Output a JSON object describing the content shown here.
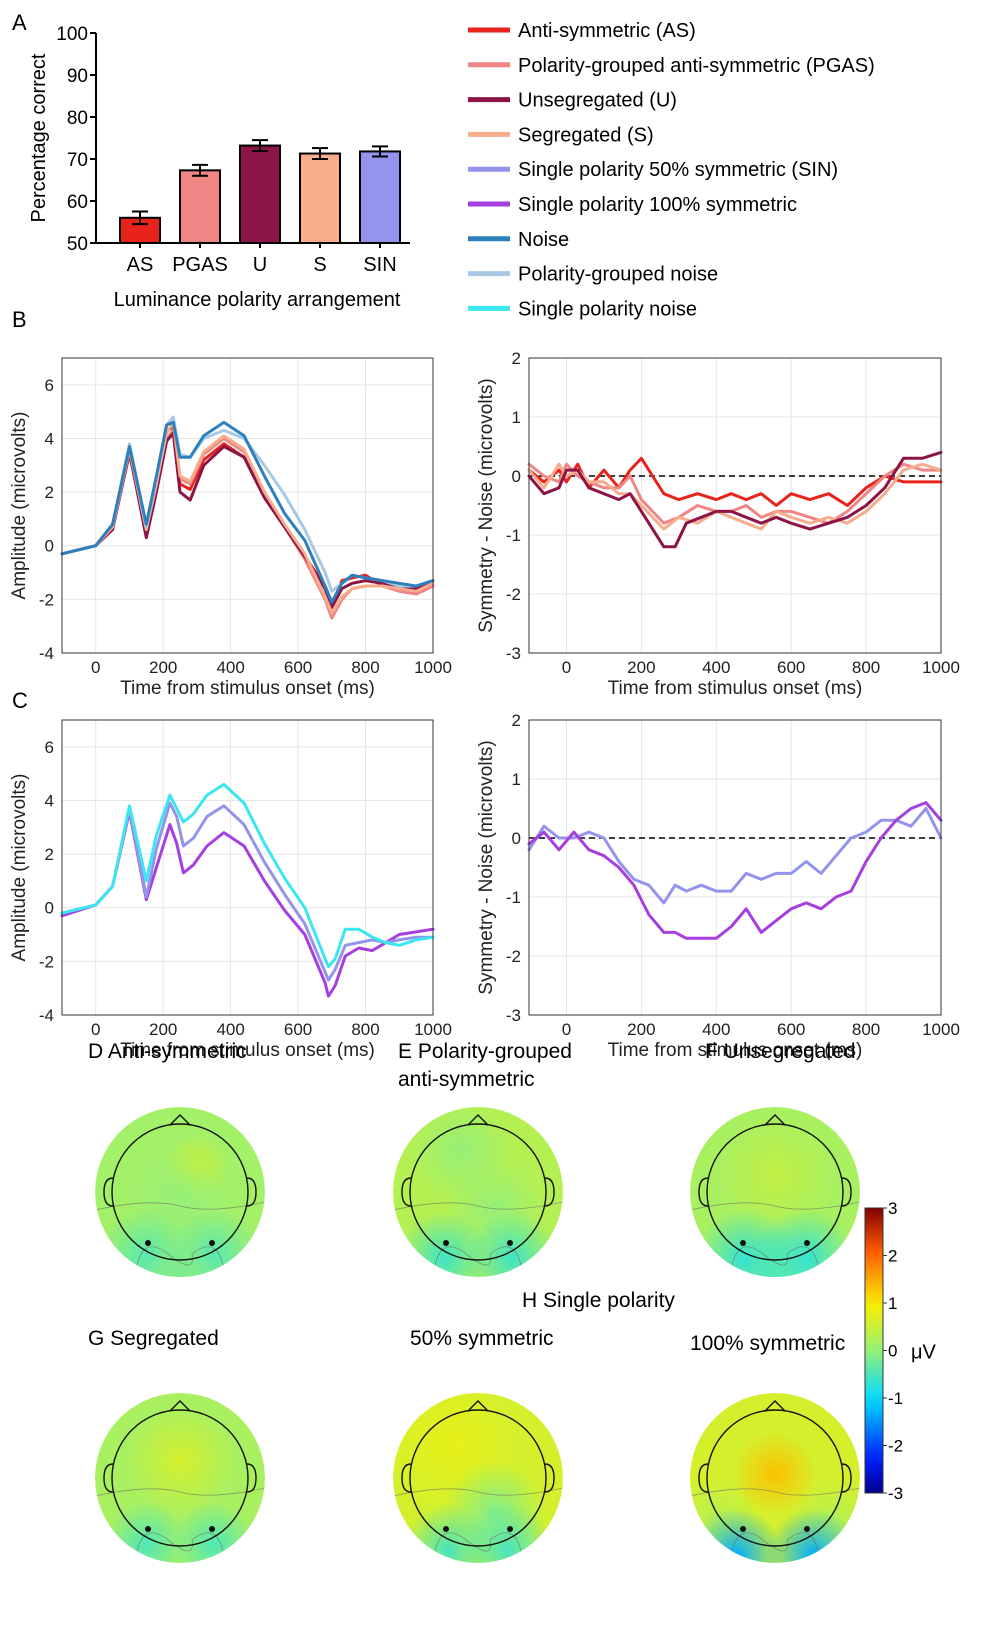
{
  "panel_labels": {
    "A": "A",
    "B": "B",
    "C": "C"
  },
  "colors": {
    "AS": "#e8231b",
    "PGAS": "#f08585",
    "U": "#8c1446",
    "S": "#f7ad8c",
    "SIN": "#9494ec",
    "SP100": "#a63fe0",
    "Noise": "#2e80bd",
    "PGNoise": "#a8c8e6",
    "SPNoise": "#3ce6f0"
  },
  "legend": [
    {
      "key": "AS",
      "label": "Anti-symmetric (AS)"
    },
    {
      "key": "PGAS",
      "label": "Polarity-grouped anti-symmetric (PGAS)"
    },
    {
      "key": "U",
      "label": "Unsegregated (U)"
    },
    {
      "key": "S",
      "label": "Segregated (S)"
    },
    {
      "key": "SIN",
      "label": "Single polarity 50% symmetric (SIN)"
    },
    {
      "key": "SP100",
      "label": "Single polarity 100% symmetric"
    },
    {
      "key": "Noise",
      "label": "Noise"
    },
    {
      "key": "PGNoise",
      "label": "Polarity-grouped noise"
    },
    {
      "key": "SPNoise",
      "label": "Single polarity noise"
    }
  ],
  "chart_data": [
    {
      "id": "A",
      "type": "bar",
      "categories": [
        "AS",
        "PGAS",
        "U",
        "S",
        "SIN"
      ],
      "values": [
        56,
        67.3,
        73.2,
        71.3,
        71.8
      ],
      "errors": [
        1.5,
        1.3,
        1.3,
        1.3,
        1.2
      ],
      "colors": [
        "AS",
        "PGAS",
        "U",
        "S",
        "SIN"
      ],
      "xlabel": "Luminance polarity arrangement",
      "ylabel": "Percentage correct",
      "ylim": [
        50,
        100
      ],
      "yticks": [
        "50",
        "60",
        "70",
        "80",
        "90",
        "100"
      ]
    },
    {
      "id": "B-left",
      "type": "line",
      "xlabel": "Time from stimulus onset (ms)",
      "ylabel": "Amplitude (microvolts)",
      "xlim": [
        -100,
        1000
      ],
      "ylim": [
        -4,
        7
      ],
      "xticks": [
        "0",
        "200",
        "400",
        "600",
        "800",
        "1000"
      ],
      "yticks": [
        "-4",
        "-2",
        "0",
        "2",
        "4",
        "6"
      ],
      "grid": true,
      "series": [
        {
          "color": "AS",
          "x": [
            -100,
            0,
            50,
            100,
            150,
            180,
            210,
            230,
            250,
            280,
            320,
            380,
            440,
            500,
            560,
            620,
            680,
            700,
            730,
            760,
            800,
            850,
            900,
            950,
            1000
          ],
          "y": [
            -0.3,
            0,
            0.8,
            3.6,
            0.6,
            2.3,
            4.3,
            4.4,
            2.3,
            2.1,
            3.2,
            3.8,
            3.3,
            1.8,
            0.7,
            -0.4,
            -1.5,
            -2.2,
            -1.3,
            -1.2,
            -1.1,
            -1.5,
            -1.6,
            -1.8,
            -1.5
          ]
        },
        {
          "color": "PGAS",
          "x": [
            -100,
            0,
            50,
            100,
            150,
            180,
            210,
            230,
            250,
            280,
            320,
            380,
            440,
            500,
            560,
            620,
            680,
            700,
            730,
            760,
            800,
            850,
            900,
            950,
            1000
          ],
          "y": [
            -0.3,
            0,
            0.7,
            3.4,
            0.5,
            2.1,
            4.0,
            4.3,
            2.5,
            2.3,
            3.4,
            4.0,
            3.5,
            1.9,
            0.7,
            -0.5,
            -2.0,
            -2.7,
            -2.0,
            -1.6,
            -1.5,
            -1.5,
            -1.7,
            -1.8,
            -1.5
          ]
        },
        {
          "color": "U",
          "x": [
            -100,
            0,
            50,
            100,
            150,
            180,
            210,
            230,
            250,
            280,
            320,
            380,
            440,
            500,
            560,
            620,
            680,
            700,
            730,
            760,
            800,
            850,
            900,
            950,
            1000
          ],
          "y": [
            -0.3,
            0,
            0.6,
            3.5,
            0.3,
            2.0,
            3.9,
            4.2,
            2.0,
            1.7,
            3.0,
            3.7,
            3.3,
            1.8,
            0.7,
            -0.4,
            -1.6,
            -2.3,
            -1.6,
            -1.4,
            -1.3,
            -1.4,
            -1.5,
            -1.6,
            -1.4
          ]
        },
        {
          "color": "S",
          "x": [
            -100,
            0,
            50,
            100,
            150,
            180,
            210,
            230,
            250,
            280,
            320,
            380,
            440,
            500,
            560,
            620,
            680,
            700,
            730,
            760,
            800,
            850,
            900,
            950,
            1000
          ],
          "y": [
            -0.3,
            0,
            0.7,
            3.6,
            0.6,
            2.3,
            4.2,
            4.6,
            2.6,
            2.4,
            3.5,
            4.1,
            3.6,
            2.0,
            0.8,
            -0.3,
            -1.9,
            -2.5,
            -1.9,
            -1.6,
            -1.5,
            -1.5,
            -1.6,
            -1.7,
            -1.4
          ]
        },
        {
          "color": "PGNoise",
          "x": [
            -100,
            0,
            50,
            100,
            150,
            180,
            210,
            230,
            250,
            280,
            320,
            380,
            440,
            500,
            560,
            620,
            680,
            700,
            730,
            760,
            800,
            850,
            900,
            950,
            1000
          ],
          "y": [
            -0.3,
            0,
            0.8,
            3.8,
            0.7,
            2.5,
            4.5,
            4.8,
            3.4,
            3.3,
            4.0,
            4.3,
            4.0,
            3.0,
            1.9,
            0.6,
            -1.0,
            -1.7,
            -1.4,
            -1.1,
            -1.2,
            -1.3,
            -1.5,
            -1.5,
            -1.3
          ]
        },
        {
          "color": "Noise",
          "x": [
            -100,
            0,
            50,
            100,
            150,
            180,
            210,
            230,
            250,
            280,
            320,
            380,
            440,
            500,
            560,
            620,
            680,
            700,
            730,
            760,
            800,
            850,
            900,
            950,
            1000
          ],
          "y": [
            -0.3,
            0,
            0.8,
            3.7,
            0.8,
            2.6,
            4.5,
            4.6,
            3.3,
            3.3,
            4.1,
            4.6,
            4.1,
            2.6,
            1.2,
            0.2,
            -1.5,
            -2.1,
            -1.4,
            -1.1,
            -1.2,
            -1.3,
            -1.4,
            -1.5,
            -1.3
          ]
        }
      ]
    },
    {
      "id": "B-right",
      "type": "line",
      "xlabel": "Time from stimulus onset (ms)",
      "ylabel": "Symmetry - Noise (microvolts)",
      "xlim": [
        -100,
        1000
      ],
      "ylim": [
        -3,
        2
      ],
      "xticks": [
        "0",
        "200",
        "400",
        "600",
        "800",
        "1000"
      ],
      "yticks": [
        "-3",
        "-2",
        "-1",
        "0",
        "1",
        "2"
      ],
      "grid": true,
      "zero_line": "dashed",
      "series": [
        {
          "color": "AS",
          "x": [
            -100,
            -60,
            -20,
            0,
            30,
            60,
            100,
            140,
            170,
            200,
            230,
            260,
            300,
            350,
            400,
            440,
            480,
            520,
            560,
            600,
            650,
            700,
            750,
            800,
            850,
            900,
            950,
            1000
          ],
          "y": [
            0.1,
            -0.1,
            0.1,
            -0.1,
            0.2,
            -0.2,
            0.1,
            -0.2,
            0.1,
            0.3,
            0.0,
            -0.3,
            -0.4,
            -0.3,
            -0.4,
            -0.3,
            -0.4,
            -0.3,
            -0.5,
            -0.3,
            -0.4,
            -0.3,
            -0.5,
            -0.2,
            0.0,
            -0.1,
            -0.1,
            -0.1
          ]
        },
        {
          "color": "PGAS",
          "x": [
            -100,
            -60,
            -20,
            0,
            30,
            60,
            100,
            140,
            170,
            200,
            230,
            260,
            300,
            350,
            400,
            440,
            480,
            520,
            560,
            600,
            650,
            700,
            750,
            800,
            850,
            900,
            950,
            1000
          ],
          "y": [
            0.2,
            0.0,
            -0.1,
            0.2,
            0.0,
            -0.1,
            -0.2,
            -0.2,
            0.0,
            -0.4,
            -0.6,
            -0.8,
            -0.7,
            -0.5,
            -0.6,
            -0.6,
            -0.5,
            -0.7,
            -0.6,
            -0.6,
            -0.7,
            -0.8,
            -0.6,
            -0.3,
            0.0,
            0.2,
            0.1,
            0.1
          ]
        },
        {
          "color": "S",
          "x": [
            -100,
            -60,
            -20,
            0,
            30,
            60,
            100,
            140,
            170,
            200,
            230,
            260,
            300,
            350,
            400,
            440,
            480,
            520,
            560,
            600,
            650,
            700,
            750,
            800,
            850,
            900,
            950,
            1000
          ],
          "y": [
            0.1,
            -0.2,
            0.2,
            0.0,
            0.1,
            -0.1,
            -0.1,
            -0.3,
            -0.3,
            -0.5,
            -0.7,
            -0.9,
            -0.7,
            -0.8,
            -0.6,
            -0.7,
            -0.8,
            -0.9,
            -0.6,
            -0.7,
            -0.8,
            -0.7,
            -0.8,
            -0.6,
            -0.3,
            0.1,
            0.2,
            0.1
          ]
        },
        {
          "color": "U",
          "x": [
            -100,
            -60,
            -20,
            0,
            30,
            60,
            100,
            140,
            170,
            200,
            230,
            260,
            290,
            320,
            360,
            400,
            440,
            480,
            520,
            560,
            600,
            650,
            700,
            750,
            800,
            850,
            900,
            950,
            1000
          ],
          "y": [
            0.0,
            -0.3,
            -0.2,
            0.1,
            0.1,
            -0.2,
            -0.3,
            -0.4,
            -0.3,
            -0.6,
            -0.9,
            -1.2,
            -1.2,
            -0.8,
            -0.7,
            -0.6,
            -0.6,
            -0.7,
            -0.8,
            -0.7,
            -0.8,
            -0.9,
            -0.8,
            -0.7,
            -0.5,
            -0.2,
            0.3,
            0.3,
            0.4
          ]
        }
      ]
    },
    {
      "id": "C-left",
      "type": "line",
      "xlabel": "Time from stimulus onset (ms)",
      "ylabel": "Amplitude (microvolts)",
      "xlim": [
        -100,
        1000
      ],
      "ylim": [
        -4,
        7
      ],
      "xticks": [
        "0",
        "200",
        "400",
        "600",
        "800",
        "1000"
      ],
      "yticks": [
        "-4",
        "-2",
        "0",
        "2",
        "4",
        "6"
      ],
      "grid": true,
      "series": [
        {
          "color": "SP100",
          "x": [
            -100,
            0,
            50,
            100,
            150,
            180,
            220,
            240,
            260,
            290,
            330,
            380,
            440,
            500,
            560,
            620,
            680,
            690,
            710,
            740,
            780,
            820,
            860,
            900,
            950,
            1000
          ],
          "y": [
            -0.3,
            0.1,
            0.8,
            3.6,
            0.3,
            1.5,
            3.1,
            2.4,
            1.3,
            1.6,
            2.3,
            2.8,
            2.3,
            1.0,
            -0.1,
            -1.0,
            -2.8,
            -3.3,
            -2.9,
            -1.8,
            -1.5,
            -1.6,
            -1.3,
            -1.0,
            -0.9,
            -0.8
          ]
        },
        {
          "color": "SIN",
          "x": [
            -100,
            0,
            50,
            100,
            150,
            180,
            220,
            240,
            260,
            290,
            330,
            380,
            440,
            500,
            560,
            620,
            680,
            690,
            710,
            740,
            780,
            820,
            860,
            900,
            950,
            1000
          ],
          "y": [
            -0.2,
            0.1,
            0.8,
            3.7,
            0.4,
            2.2,
            3.9,
            3.4,
            2.3,
            2.6,
            3.4,
            3.8,
            3.1,
            1.7,
            0.5,
            -0.6,
            -2.4,
            -2.7,
            -2.3,
            -1.4,
            -1.3,
            -1.2,
            -1.3,
            -1.2,
            -1.1,
            -1.1
          ]
        },
        {
          "color": "SPNoise",
          "x": [
            -100,
            0,
            50,
            100,
            150,
            180,
            220,
            240,
            260,
            290,
            330,
            380,
            440,
            500,
            560,
            620,
            680,
            690,
            710,
            740,
            780,
            820,
            860,
            900,
            950,
            1000
          ],
          "y": [
            -0.2,
            0.1,
            0.8,
            3.8,
            1.0,
            2.7,
            4.2,
            3.7,
            3.2,
            3.5,
            4.2,
            4.6,
            3.9,
            2.4,
            1.1,
            0.0,
            -1.9,
            -2.2,
            -1.9,
            -0.8,
            -0.8,
            -1.1,
            -1.3,
            -1.4,
            -1.2,
            -1.1
          ]
        }
      ]
    },
    {
      "id": "C-right",
      "type": "line",
      "xlabel": "Time from stimulus onset (ms)",
      "ylabel": "Symmetry - Noise (microvolts)",
      "xlim": [
        -100,
        1000
      ],
      "ylim": [
        -3,
        2
      ],
      "xticks": [
        "0",
        "200",
        "400",
        "600",
        "800",
        "1000"
      ],
      "yticks": [
        "-3",
        "-2",
        "-1",
        "0",
        "1",
        "2"
      ],
      "grid": true,
      "zero_line": "dashed",
      "series": [
        {
          "color": "SIN",
          "x": [
            -100,
            -60,
            -20,
            20,
            60,
            100,
            140,
            180,
            220,
            260,
            290,
            320,
            360,
            400,
            440,
            480,
            520,
            560,
            600,
            640,
            680,
            720,
            760,
            800,
            840,
            880,
            920,
            960,
            1000
          ],
          "y": [
            -0.2,
            0.2,
            0.0,
            0.0,
            0.1,
            0.0,
            -0.4,
            -0.7,
            -0.8,
            -1.1,
            -0.8,
            -0.9,
            -0.8,
            -0.9,
            -0.9,
            -0.6,
            -0.7,
            -0.6,
            -0.6,
            -0.4,
            -0.6,
            -0.3,
            0.0,
            0.1,
            0.3,
            0.3,
            0.2,
            0.5,
            0.0
          ]
        },
        {
          "color": "SP100",
          "x": [
            -100,
            -60,
            -20,
            20,
            60,
            100,
            140,
            180,
            220,
            260,
            290,
            320,
            360,
            400,
            440,
            480,
            520,
            560,
            600,
            640,
            680,
            720,
            760,
            800,
            840,
            880,
            920,
            960,
            1000
          ],
          "y": [
            -0.1,
            0.1,
            -0.2,
            0.1,
            -0.2,
            -0.3,
            -0.5,
            -0.8,
            -1.3,
            -1.6,
            -1.6,
            -1.7,
            -1.7,
            -1.7,
            -1.5,
            -1.2,
            -1.6,
            -1.4,
            -1.2,
            -1.1,
            -1.2,
            -1.0,
            -0.9,
            -0.4,
            0.0,
            0.3,
            0.5,
            0.6,
            0.3
          ]
        }
      ]
    }
  ],
  "topo_panels": [
    {
      "id": "D",
      "title": [
        "D  Anti-symmetric"
      ],
      "map": "D"
    },
    {
      "id": "E",
      "title": [
        "E  Polarity-grouped",
        "anti-symmetric"
      ],
      "map": "E"
    },
    {
      "id": "F",
      "title": [
        "F  Unsegregated"
      ],
      "map": "F"
    },
    {
      "id": "G",
      "title": [
        "G  Segregated"
      ],
      "map": "G"
    },
    {
      "id": "H50",
      "title": [
        "50% symmetric"
      ],
      "map": "H50"
    },
    {
      "id": "H100",
      "title": [
        "100% symmetric"
      ],
      "map": "H100"
    }
  ],
  "topo_group_title": "H  Single polarity",
  "colorbar": {
    "min": -3,
    "max": 3,
    "ticks": [
      "3",
      "2",
      "1",
      "0",
      "-1",
      "-2",
      "-3"
    ],
    "unit": "μV"
  }
}
